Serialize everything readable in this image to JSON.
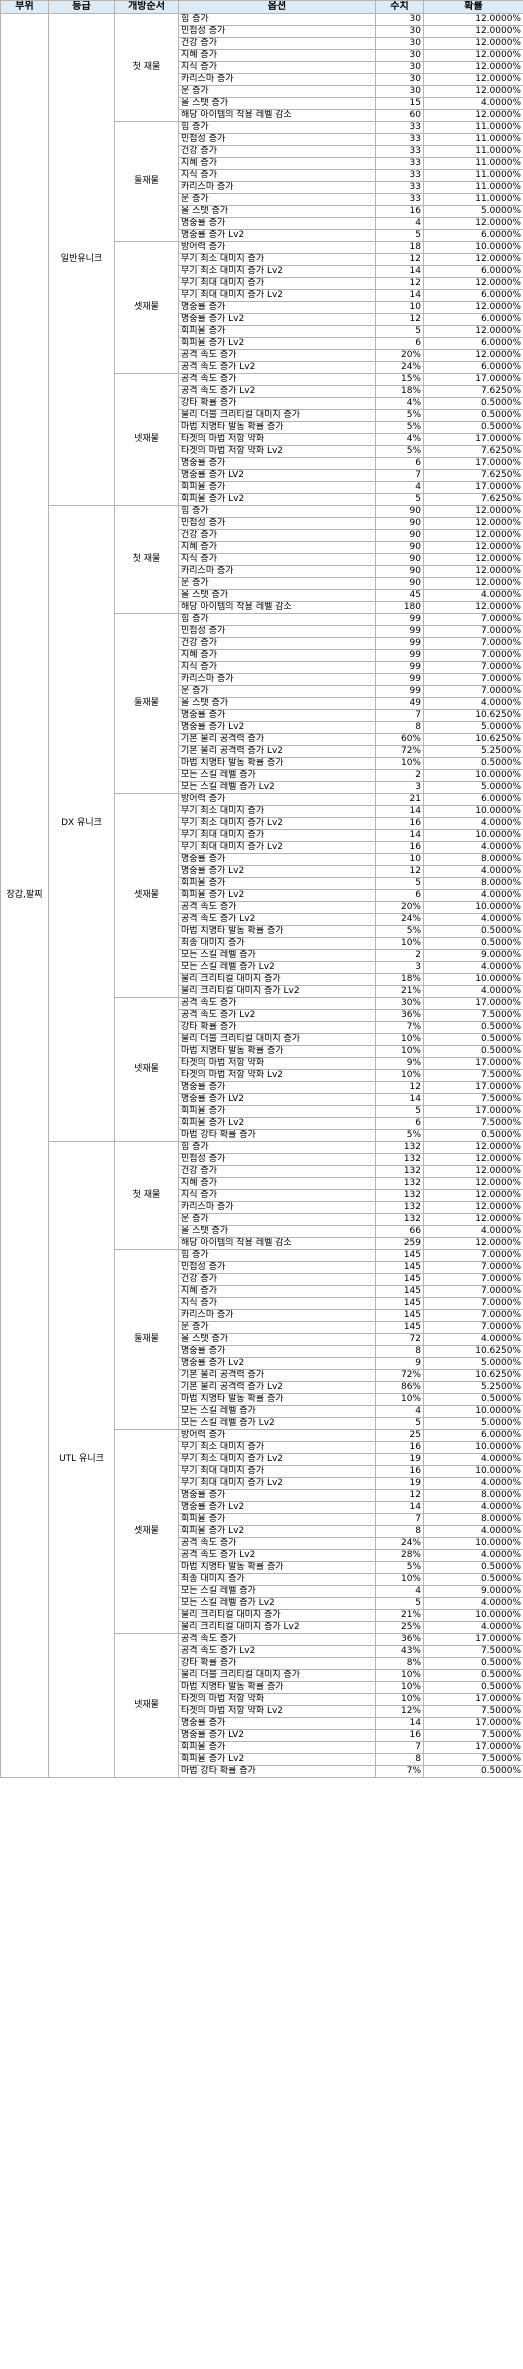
{
  "headers": [
    "부위",
    "등급",
    "개방순서",
    "옵션",
    "수치",
    "확률"
  ],
  "part": "장갑,팔찌",
  "grades": [
    {
      "name": "일반유니크",
      "groups": [
        {
          "order": "첫 재물",
          "rows": [
            [
              "힘 증가",
              "30",
              "12.0000%"
            ],
            [
              "민첩성 증가",
              "30",
              "12.0000%"
            ],
            [
              "건강 증가",
              "30",
              "12.0000%"
            ],
            [
              "지혜 증가",
              "30",
              "12.0000%"
            ],
            [
              "지식 증가",
              "30",
              "12.0000%"
            ],
            [
              "카리스마 증가",
              "30",
              "12.0000%"
            ],
            [
              "운 증가",
              "30",
              "12.0000%"
            ],
            [
              "올 스탯 증가",
              "15",
              "4.0000%"
            ],
            [
              "해당 아이템의 착용 레벨 감소",
              "60",
              "12.0000%"
            ]
          ]
        },
        {
          "order": "둘재물",
          "rows": [
            [
              "힘 증가",
              "33",
              "11.0000%"
            ],
            [
              "민첩성 증가",
              "33",
              "11.0000%"
            ],
            [
              "건강 증가",
              "33",
              "11.0000%"
            ],
            [
              "지혜 증가",
              "33",
              "11.0000%"
            ],
            [
              "지식 증가",
              "33",
              "11.0000%"
            ],
            [
              "카리스마 증가",
              "33",
              "11.0000%"
            ],
            [
              "운 증가",
              "33",
              "11.0000%"
            ],
            [
              "올 스탯 증가",
              "16",
              "5.0000%"
            ],
            [
              "명중률 증가",
              "4",
              "12.0000%"
            ],
            [
              "명중률 증가 Lv2",
              "5",
              "6.0000%"
            ]
          ]
        },
        {
          "order": "셋재물",
          "rows": [
            [
              "방어력 증가",
              "18",
              "10.0000%"
            ],
            [
              "무기 최소 대미지 증가",
              "12",
              "12.0000%"
            ],
            [
              "무기 최소 대미지 증가 Lv2",
              "14",
              "6.0000%"
            ],
            [
              "무기 최대 대미지 증가",
              "12",
              "12.0000%"
            ],
            [
              "무기 최대 대미지 증가 Lv2",
              "14",
              "6.0000%"
            ],
            [
              "명중률 증가",
              "10",
              "12.0000%"
            ],
            [
              "명중률 증가 Lv2",
              "12",
              "6.0000%"
            ],
            [
              "회피율 증가",
              "5",
              "12.0000%"
            ],
            [
              "회피율 증가 Lv2",
              "6",
              "6.0000%"
            ],
            [
              "공격 속도 증가",
              "20%",
              "12.0000%"
            ],
            [
              "공격 속도 증가 Lv2",
              "24%",
              "6.0000%"
            ]
          ]
        },
        {
          "order": "넷재물",
          "rows": [
            [
              "공격 속도 증가",
              "15%",
              "17.0000%"
            ],
            [
              "공격 속도 증가 Lv2",
              "18%",
              "7.6250%"
            ],
            [
              "강타 확률 증가",
              "4%",
              "0.5000%"
            ],
            [
              "물리 더블 크리티컬 대미지 증가",
              "5%",
              "0.5000%"
            ],
            [
              "마법 치명타 발동 확률 증가",
              "5%",
              "0.5000%"
            ],
            [
              "타겟의 마법 저항 약화",
              "4%",
              "17.0000%"
            ],
            [
              "타겟의 마법 저항 약화 Lv2",
              "5%",
              "7.6250%"
            ],
            [
              "명중률 증가",
              "6",
              "17.0000%"
            ],
            [
              "명중률 증가 LV2",
              "7",
              "7.6250%"
            ],
            [
              "회피율 증가",
              "4",
              "17.0000%"
            ],
            [
              "회피율 증가 Lv2",
              "5",
              "7.6250%"
            ]
          ]
        }
      ]
    },
    {
      "name": "DX 유니크",
      "groups": [
        {
          "order": "첫 재물",
          "rows": [
            [
              "힘 증가",
              "90",
              "12.0000%"
            ],
            [
              "민첩성 증가",
              "90",
              "12.0000%"
            ],
            [
              "건강 증가",
              "90",
              "12.0000%"
            ],
            [
              "지혜 증가",
              "90",
              "12.0000%"
            ],
            [
              "지식 증가",
              "90",
              "12.0000%"
            ],
            [
              "카리스마 증가",
              "90",
              "12.0000%"
            ],
            [
              "운 증가",
              "90",
              "12.0000%"
            ],
            [
              "올 스탯 증가",
              "45",
              "4.0000%"
            ],
            [
              "해당 아이템의 착용 레벨 감소",
              "180",
              "12.0000%"
            ]
          ]
        },
        {
          "order": "둘재물",
          "rows": [
            [
              "힘 증가",
              "99",
              "7.0000%"
            ],
            [
              "민첩성 증가",
              "99",
              "7.0000%"
            ],
            [
              "건강 증가",
              "99",
              "7.0000%"
            ],
            [
              "지혜 증가",
              "99",
              "7.0000%"
            ],
            [
              "지식 증가",
              "99",
              "7.0000%"
            ],
            [
              "카리스마 증가",
              "99",
              "7.0000%"
            ],
            [
              "운 증가",
              "99",
              "7.0000%"
            ],
            [
              "올 스탯 증가",
              "49",
              "4.0000%"
            ],
            [
              "명중률 증가",
              "7",
              "10.6250%"
            ],
            [
              "명중률 증가 Lv2",
              "8",
              "5.0000%"
            ],
            [
              "기본 물리 공격력 증가",
              "60%",
              "10.6250%"
            ],
            [
              "기본 물리 공격력 증가 Lv2",
              "72%",
              "5.2500%"
            ],
            [
              "마법 치명타 발동 확률 증가",
              "10%",
              "0.5000%"
            ],
            [
              "모든 스킬 레벨 증가",
              "2",
              "10.0000%"
            ],
            [
              "모든 스킬 레벨 증가 Lv2",
              "3",
              "5.0000%"
            ]
          ]
        },
        {
          "order": "셋재물",
          "rows": [
            [
              "방어력 증가",
              "21",
              "6.0000%"
            ],
            [
              "무기 최소 대미지 증가",
              "14",
              "10.0000%"
            ],
            [
              "무기 최소 대미지 증가 Lv2",
              "16",
              "4.0000%"
            ],
            [
              "무기 최대 대미지 증가",
              "14",
              "10.0000%"
            ],
            [
              "무기 최대 대미지 증가 Lv2",
              "16",
              "4.0000%"
            ],
            [
              "명중률 증가",
              "10",
              "8.0000%"
            ],
            [
              "명중률 증가 Lv2",
              "12",
              "4.0000%"
            ],
            [
              "회피율 증가",
              "5",
              "8.0000%"
            ],
            [
              "회피율 증가 Lv2",
              "6",
              "4.0000%"
            ],
            [
              "공격 속도 증가",
              "20%",
              "10.0000%"
            ],
            [
              "공격 속도 증가 Lv2",
              "24%",
              "4.0000%"
            ],
            [
              "마법 치명타 발동 확률 증가",
              "5%",
              "0.5000%"
            ],
            [
              "최종 대미지 증가",
              "10%",
              "0.5000%"
            ],
            [
              "모든 스킬 레벨 증가",
              "2",
              "9.0000%"
            ],
            [
              "모든 스킬 레벨 증가 Lv2",
              "3",
              "4.0000%"
            ],
            [
              "물리 크리티컬 대미지 증가",
              "18%",
              "10.0000%"
            ],
            [
              "물리 크리티컬 대미지 증가 Lv2",
              "21%",
              "4.0000%"
            ]
          ]
        },
        {
          "order": "넷재물",
          "rows": [
            [
              "공격 속도 증가",
              "30%",
              "17.0000%"
            ],
            [
              "공격 속도 증가 Lv2",
              "36%",
              "7.5000%"
            ],
            [
              "강타 확률 증가",
              "7%",
              "0.5000%"
            ],
            [
              "물리 더블 크리티컬 대미지 증가",
              "10%",
              "0.5000%"
            ],
            [
              "마법 치명타 발동 확률 증가",
              "10%",
              "0.5000%"
            ],
            [
              "타겟의 마법 저항 약화",
              "9%",
              "17.0000%"
            ],
            [
              "타겟의 마법 저항 약화 Lv2",
              "10%",
              "7.5000%"
            ],
            [
              "명중률 증가",
              "12",
              "17.0000%"
            ],
            [
              "명중률 증가 LV2",
              "14",
              "7.5000%"
            ],
            [
              "회피율 증가",
              "5",
              "17.0000%"
            ],
            [
              "회피율 증가 Lv2",
              "6",
              "7.5000%"
            ],
            [
              "마법 강타 확률 증가",
              "5%",
              "0.5000%"
            ]
          ]
        }
      ]
    },
    {
      "name": "UTL 유니크",
      "groups": [
        {
          "order": "첫 재물",
          "rows": [
            [
              "힘 증가",
              "132",
              "12.0000%"
            ],
            [
              "민첩성 증가",
              "132",
              "12.0000%"
            ],
            [
              "건강 증가",
              "132",
              "12.0000%"
            ],
            [
              "지혜 증가",
              "132",
              "12.0000%"
            ],
            [
              "지식 증가",
              "132",
              "12.0000%"
            ],
            [
              "카리스마 증가",
              "132",
              "12.0000%"
            ],
            [
              "운 증가",
              "132",
              "12.0000%"
            ],
            [
              "올 스탯 증가",
              "66",
              "4.0000%"
            ],
            [
              "해당 아이템의 착용 레벨 감소",
              "259",
              "12.0000%"
            ]
          ]
        },
        {
          "order": "둘재물",
          "rows": [
            [
              "힘 증가",
              "145",
              "7.0000%"
            ],
            [
              "민첩성 증가",
              "145",
              "7.0000%"
            ],
            [
              "건강 증가",
              "145",
              "7.0000%"
            ],
            [
              "지혜 증가",
              "145",
              "7.0000%"
            ],
            [
              "지식 증가",
              "145",
              "7.0000%"
            ],
            [
              "카리스마 증가",
              "145",
              "7.0000%"
            ],
            [
              "운 증가",
              "145",
              "7.0000%"
            ],
            [
              "올 스탯 증가",
              "72",
              "4.0000%"
            ],
            [
              "명중률 증가",
              "8",
              "10.6250%"
            ],
            [
              "명중률 증가 Lv2",
              "9",
              "5.0000%"
            ],
            [
              "기본 물리 공격력 증가",
              "72%",
              "10.6250%"
            ],
            [
              "기본 물리 공격력 증가 Lv2",
              "86%",
              "5.2500%"
            ],
            [
              "마법 치명타 발동 확률 증가",
              "10%",
              "0.5000%"
            ],
            [
              "모든 스킬 레벨 증가",
              "4",
              "10.0000%"
            ],
            [
              "모든 스킬 레벨 증가 Lv2",
              "5",
              "5.0000%"
            ]
          ]
        },
        {
          "order": "셋재물",
          "rows": [
            [
              "방어력 증가",
              "25",
              "6.0000%"
            ],
            [
              "무기 최소 대미지 증가",
              "16",
              "10.0000%"
            ],
            [
              "무기 최소 대미지 증가 Lv2",
              "19",
              "4.0000%"
            ],
            [
              "무기 최대 대미지 증가",
              "16",
              "10.0000%"
            ],
            [
              "무기 최대 대미지 증가 Lv2",
              "19",
              "4.0000%"
            ],
            [
              "명중률 증가",
              "12",
              "8.0000%"
            ],
            [
              "명중률 증가 Lv2",
              "14",
              "4.0000%"
            ],
            [
              "회피율 증가",
              "7",
              "8.0000%"
            ],
            [
              "회피율 증가 Lv2",
              "8",
              "4.0000%"
            ],
            [
              "공격 속도 증가",
              "24%",
              "10.0000%"
            ],
            [
              "공격 속도 증가 Lv2",
              "28%",
              "4.0000%"
            ],
            [
              "마법 치명타 발동 확률 증가",
              "5%",
              "0.5000%"
            ],
            [
              "최종 대미지 증가",
              "10%",
              "0.5000%"
            ],
            [
              "모든 스킬 레벨 증가",
              "4",
              "9.0000%"
            ],
            [
              "모든 스킬 레벨 증가 Lv2",
              "5",
              "4.0000%"
            ],
            [
              "물리 크리티컬 대미지 증가",
              "21%",
              "10.0000%"
            ],
            [
              "물리 크리티컬 대미지 증가 Lv2",
              "25%",
              "4.0000%"
            ]
          ]
        },
        {
          "order": "넷재물",
          "rows": [
            [
              "공격 속도 증가",
              "36%",
              "17.0000%"
            ],
            [
              "공격 속도 증가 Lv2",
              "43%",
              "7.5000%"
            ],
            [
              "강타 확률 증가",
              "8%",
              "0.5000%"
            ],
            [
              "물리 더블 크리티컬 대미지 증가",
              "10%",
              "0.5000%"
            ],
            [
              "마법 치명타 발동 확률 증가",
              "10%",
              "0.5000%"
            ],
            [
              "타겟의 마법 저항 약화",
              "10%",
              "17.0000%"
            ],
            [
              "타겟의 마법 저항 약화 Lv2",
              "12%",
              "7.5000%"
            ],
            [
              "명중률 증가",
              "14",
              "17.0000%"
            ],
            [
              "명중률 증가 LV2",
              "16",
              "7.5000%"
            ],
            [
              "회피율 증가",
              "7",
              "17.0000%"
            ],
            [
              "회피율 증가 Lv2",
              "8",
              "7.5000%"
            ],
            [
              "마법 강타 확률 증가",
              "7%",
              "0.5000%"
            ]
          ]
        }
      ]
    }
  ]
}
